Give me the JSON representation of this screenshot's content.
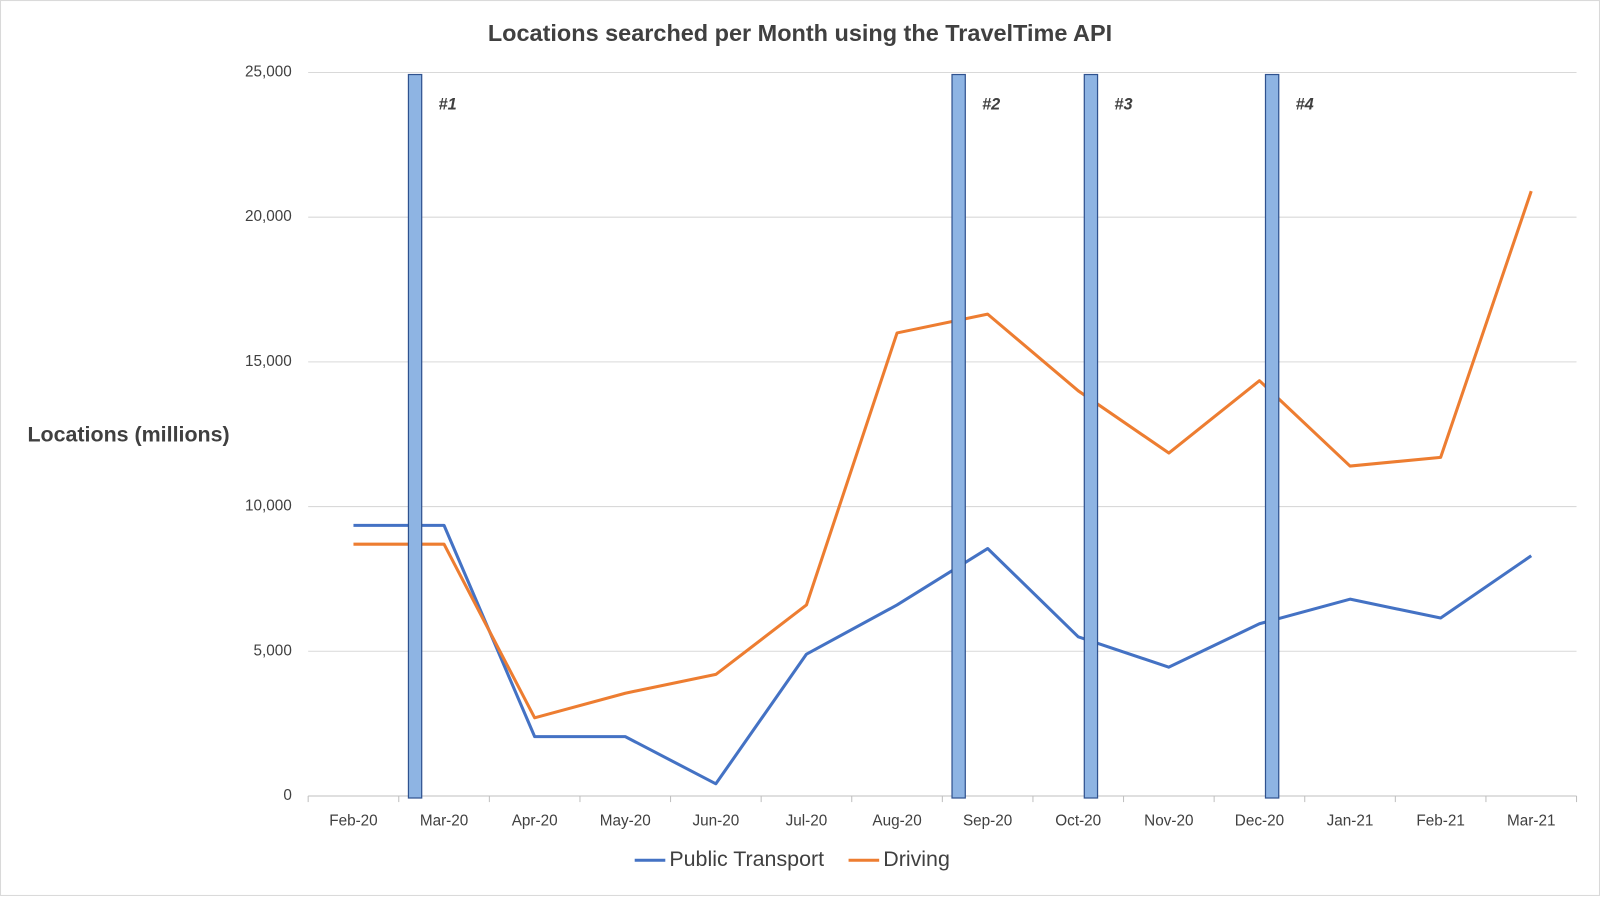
{
  "chart_data": {
    "type": "line",
    "title": "Locations searched per Month using the TravelTime API",
    "y_label": "Locations (millions)",
    "categories": [
      "Feb-20",
      "Mar-20",
      "Apr-20",
      "May-20",
      "Jun-20",
      "Jul-20",
      "Aug-20",
      "Sep-20",
      "Oct-20",
      "Nov-20",
      "Dec-20",
      "Jan-21",
      "Feb-21",
      "Mar-21"
    ],
    "series": [
      {
        "name": "Public Transport",
        "color": "#4472c4",
        "values": [
          9350,
          9350,
          2050,
          2050,
          420,
          4900,
          6600,
          8550,
          5500,
          4450,
          5950,
          6800,
          6150,
          8300
        ]
      },
      {
        "name": "Driving",
        "color": "#ed7d31",
        "values": [
          8700,
          8700,
          2700,
          3550,
          4200,
          6600,
          16000,
          16650,
          14000,
          11850,
          14350,
          11400,
          11700,
          20900
        ]
      }
    ],
    "ylim": [
      0,
      25000
    ],
    "yticks": [
      0,
      {
        "value": 5000,
        "label": "5,000"
      },
      {
        "value": 10000,
        "label": "10,000"
      },
      {
        "value": 15000,
        "label": "15,000"
      },
      {
        "value": 20000,
        "label": "20,000"
      },
      {
        "value": 25000,
        "label": "25,000"
      }
    ],
    "grid": true,
    "legend": "bottom",
    "annotations": [
      "#1",
      "#2",
      "#3",
      "#4"
    ],
    "annotation_color": "#8eb4e3"
  }
}
